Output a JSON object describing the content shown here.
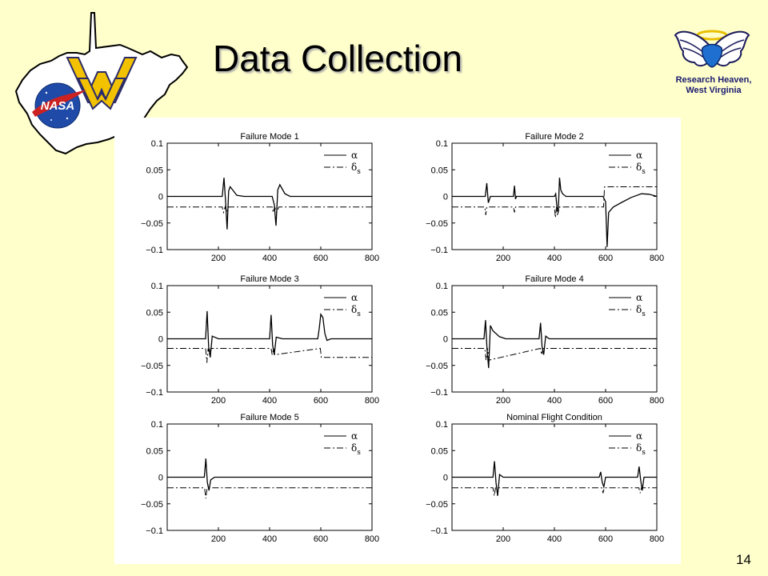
{
  "slide": {
    "title": "Data Collection",
    "logo_caption_line1": "Research Heaven,",
    "logo_caption_line2": "West Virginia",
    "logo_left_text": "NASA",
    "page_number": "14"
  },
  "colors": {
    "background": "#FFFFCC",
    "wv_gold": "#F2C200",
    "nasa_blue": "#1F4AA8",
    "nasa_red": "#CC2222"
  },
  "icons": [
    "west-virginia-map-icon",
    "wv-logo-icon",
    "nasa-meatball-icon",
    "angel-wings-icon"
  ],
  "chart_data": [
    {
      "type": "line",
      "title": "Failure Mode 1",
      "xlim": [
        0,
        800
      ],
      "ylim": [
        -0.1,
        0.1
      ],
      "xticks": [
        200,
        400,
        600,
        800
      ],
      "yticks": [
        0.1,
        0.05,
        0,
        -0.05,
        -0.1
      ],
      "ytick_labels": [
        "0.1",
        "0.05",
        "0",
        "−0.05",
        "−0.1"
      ],
      "legend": [
        {
          "symbol": "α",
          "sub": "",
          "style": "solid"
        },
        {
          "symbol": "δ",
          "sub": "s",
          "style": "dashdot"
        }
      ],
      "series": [
        {
          "style": "solid",
          "x": [
            0,
            215,
            222,
            228,
            234,
            240,
            246,
            256,
            272,
            300,
            400,
            410,
            418,
            425,
            432,
            440,
            448,
            460,
            480,
            800
          ],
          "y": [
            0,
            0,
            0.035,
            -0.01,
            -0.062,
            0.01,
            0.018,
            0.012,
            0.002,
            0,
            0,
            0,
            -0.015,
            -0.055,
            0.012,
            0.022,
            0.015,
            0.005,
            0,
            0
          ]
        },
        {
          "style": "dashdot",
          "x": [
            0,
            215,
            220,
            226,
            232,
            240,
            410,
            414,
            420,
            428,
            436,
            800
          ],
          "y": [
            -0.02,
            -0.02,
            -0.03,
            -0.02,
            -0.03,
            -0.02,
            -0.02,
            -0.03,
            -0.02,
            -0.03,
            -0.02,
            -0.02
          ]
        }
      ]
    },
    {
      "type": "line",
      "title": "Failure Mode 2",
      "xlim": [
        0,
        800
      ],
      "ylim": [
        -0.1,
        0.1
      ],
      "xticks": [
        200,
        400,
        600,
        800
      ],
      "yticks": [
        0.1,
        0.05,
        0,
        -0.05,
        -0.1
      ],
      "ytick_labels": [
        "0.1",
        "0.05",
        "0",
        "−0.05",
        "−0.1"
      ],
      "legend": [
        {
          "symbol": "α",
          "sub": "",
          "style": "solid"
        },
        {
          "symbol": "δ",
          "sub": "s",
          "style": "dashdot"
        }
      ],
      "series": [
        {
          "style": "solid",
          "x": [
            0,
            130,
            136,
            142,
            150,
            240,
            244,
            248,
            252,
            400,
            405,
            410,
            415,
            420,
            425,
            432,
            445,
            590,
            600,
            606,
            612,
            630,
            660,
            700,
            740,
            770,
            800
          ],
          "y": [
            0,
            0,
            0.025,
            -0.012,
            0,
            0,
            0.02,
            -0.005,
            0,
            0,
            0.005,
            -0.02,
            -0.03,
            0.035,
            0.012,
            0.005,
            0,
            0,
            -0.01,
            -0.095,
            -0.03,
            -0.02,
            -0.012,
            -0.002,
            0.005,
            0.004,
            0
          ]
        },
        {
          "style": "dashdot",
          "x": [
            0,
            128,
            132,
            136,
            240,
            244,
            248,
            400,
            404,
            408,
            412,
            420,
            592,
            596,
            800
          ],
          "y": [
            -0.02,
            -0.02,
            -0.035,
            -0.02,
            -0.02,
            -0.03,
            -0.02,
            -0.02,
            -0.04,
            -0.02,
            -0.035,
            -0.02,
            -0.02,
            0.018,
            0.018
          ]
        }
      ]
    },
    {
      "type": "line",
      "title": "Failure Mode 3",
      "xlim": [
        0,
        800
      ],
      "ylim": [
        -0.1,
        0.1
      ],
      "xticks": [
        200,
        400,
        600,
        800
      ],
      "yticks": [
        0.1,
        0.05,
        0,
        -0.05,
        -0.1
      ],
      "ytick_labels": [
        "0.1",
        "0.05",
        "0",
        "−0.05",
        "−0.1"
      ],
      "legend": [
        {
          "symbol": "α",
          "sub": "",
          "style": "solid"
        },
        {
          "symbol": "δ",
          "sub": "s",
          "style": "dashdot"
        }
      ],
      "series": [
        {
          "style": "solid",
          "x": [
            0,
            150,
            156,
            162,
            168,
            176,
            200,
            400,
            406,
            412,
            418,
            426,
            450,
            588,
            594,
            600,
            608,
            616,
            624,
            640,
            800
          ],
          "y": [
            0,
            0,
            0.052,
            -0.015,
            -0.035,
            0.005,
            0,
            0,
            0.045,
            -0.012,
            -0.03,
            0.003,
            0,
            0,
            0.02,
            0.046,
            0.04,
            0.01,
            -0.003,
            0,
            0
          ]
        },
        {
          "style": "dashdot",
          "x": [
            0,
            150,
            155,
            160,
            165,
            170,
            406,
            410,
            416,
            420,
            598,
            602,
            800
          ],
          "y": [
            -0.018,
            -0.018,
            -0.045,
            -0.018,
            -0.03,
            -0.018,
            -0.018,
            -0.03,
            -0.018,
            -0.03,
            -0.018,
            -0.035,
            -0.035
          ]
        }
      ]
    },
    {
      "type": "line",
      "title": "Failure Mode 4",
      "xlim": [
        0,
        800
      ],
      "ylim": [
        -0.1,
        0.1
      ],
      "xticks": [
        200,
        400,
        600,
        800
      ],
      "yticks": [
        0.1,
        0.05,
        0,
        -0.05,
        -0.1
      ],
      "ytick_labels": [
        "0.1",
        "0.05",
        "0",
        "−0.05",
        "−0.1"
      ],
      "legend": [
        {
          "symbol": "α",
          "sub": "",
          "style": "solid"
        },
        {
          "symbol": "δ",
          "sub": "s",
          "style": "dashdot"
        }
      ],
      "series": [
        {
          "style": "solid",
          "x": [
            0,
            125,
            131,
            137,
            143,
            150,
            160,
            185,
            210,
            340,
            346,
            352,
            358,
            366,
            380,
            800
          ],
          "y": [
            0,
            0,
            0.035,
            -0.02,
            -0.055,
            0.025,
            0.015,
            0.004,
            0,
            0,
            0.03,
            -0.015,
            -0.03,
            0.005,
            0,
            0
          ]
        },
        {
          "style": "dashdot",
          "x": [
            0,
            128,
            133,
            139,
            145,
            345,
            350,
            356,
            800
          ],
          "y": [
            -0.018,
            -0.018,
            -0.04,
            -0.018,
            -0.04,
            -0.018,
            -0.03,
            -0.018,
            -0.018
          ]
        }
      ]
    },
    {
      "type": "line",
      "title": "Failure Mode 5",
      "xlim": [
        0,
        800
      ],
      "ylim": [
        -0.1,
        0.1
      ],
      "xticks": [
        200,
        400,
        600,
        800
      ],
      "yticks": [
        0.1,
        0.05,
        0,
        -0.05,
        -0.1
      ],
      "ytick_labels": [
        "0.1",
        "0.05",
        "0",
        "−0.05",
        "−0.1"
      ],
      "legend": [
        {
          "symbol": "α",
          "sub": "",
          "style": "solid"
        },
        {
          "symbol": "δ",
          "sub": "s",
          "style": "dashdot"
        }
      ],
      "series": [
        {
          "style": "solid",
          "x": [
            0,
            145,
            151,
            157,
            163,
            170,
            185,
            800
          ],
          "y": [
            0,
            0,
            0.035,
            -0.01,
            -0.025,
            -0.005,
            0,
            0
          ]
        },
        {
          "style": "dashdot",
          "x": [
            0,
            146,
            151,
            156,
            800
          ],
          "y": [
            -0.02,
            -0.02,
            -0.04,
            -0.02,
            -0.02
          ]
        }
      ]
    },
    {
      "type": "line",
      "title": "Nominal Flight Condition",
      "xlim": [
        0,
        800
      ],
      "ylim": [
        -0.1,
        0.1
      ],
      "xticks": [
        200,
        400,
        600,
        800
      ],
      "yticks": [
        0.1,
        0.05,
        0,
        -0.05,
        -0.1
      ],
      "ytick_labels": [
        "0.1",
        "0.05",
        "0",
        "−0.05",
        "−0.1"
      ],
      "legend": [
        {
          "symbol": "α",
          "sub": "",
          "style": "solid"
        },
        {
          "symbol": "δ",
          "sub": "s",
          "style": "dashdot"
        }
      ],
      "series": [
        {
          "style": "solid",
          "x": [
            0,
            160,
            166,
            172,
            178,
            186,
            200,
            575,
            581,
            587,
            593,
            600,
            725,
            731,
            737,
            743,
            750,
            800
          ],
          "y": [
            0,
            0,
            0.03,
            -0.01,
            -0.035,
            0.005,
            0,
            0,
            0.01,
            -0.01,
            -0.018,
            0,
            0,
            0.02,
            -0.005,
            -0.025,
            0,
            0
          ]
        },
        {
          "style": "dashdot",
          "x": [
            0,
            160,
            165,
            170,
            585,
            590,
            595,
            730,
            735,
            740,
            800
          ],
          "y": [
            -0.02,
            -0.02,
            -0.035,
            -0.02,
            -0.02,
            -0.03,
            -0.02,
            -0.02,
            -0.03,
            -0.02,
            -0.02
          ]
        }
      ]
    }
  ]
}
